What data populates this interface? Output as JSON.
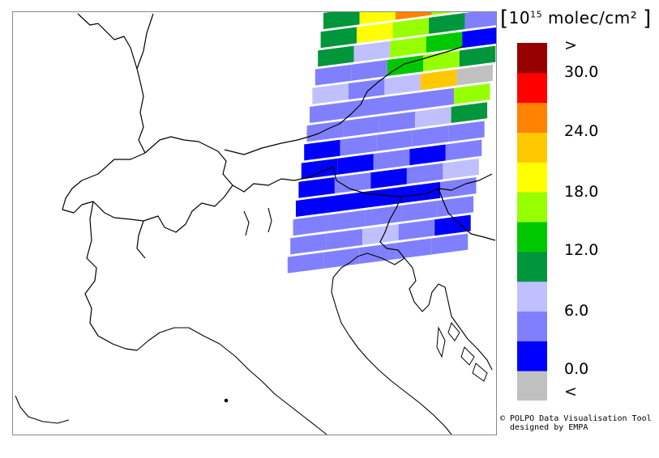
{
  "units_label": {
    "open_bracket": "[",
    "base": "10",
    "exponent": "15",
    "text": " molec/cm²",
    "close_bracket": "]"
  },
  "legend": {
    "bins": [
      {
        "label": "<",
        "color": "#c0c0c0"
      },
      {
        "label": "",
        "color": "#0000ff"
      },
      {
        "label": "",
        "color": "#8080ff"
      },
      {
        "label": "",
        "color": "#c0c0ff"
      },
      {
        "label": "",
        "color": "#00963c"
      },
      {
        "label": "",
        "color": "#00c800"
      },
      {
        "label": "",
        "color": "#96ff00"
      },
      {
        "label": "",
        "color": "#ffff00"
      },
      {
        "label": "",
        "color": "#ffc800"
      },
      {
        "label": "",
        "color": "#ff8200"
      },
      {
        "label": "",
        "color": "#ff0000"
      },
      {
        "label": ">",
        "color": "#960000"
      }
    ],
    "tick_labels": [
      "<",
      "0.0",
      "6.0",
      "12.0",
      "18.0",
      "24.0",
      "30.0",
      ">"
    ]
  },
  "credit": {
    "line1": "© POLPO Data Visualisation Tool",
    "line2": "  designed by EMPA"
  },
  "colors": {
    "grey": "#c0c0c0",
    "blue": "#0000ff",
    "med_blue": "#8080ff",
    "light_blue": "#c0c0ff",
    "dark_green": "#00963c",
    "green": "#00c800",
    "lime": "#96ff00",
    "yellow": "#ffff00",
    "gold": "#ffc800",
    "orange": "#ff8200",
    "red": "#ff0000",
    "dark_red": "#960000"
  },
  "swath_rows": [
    [
      "dark_green",
      "yellow",
      "orange",
      "lime",
      "lime"
    ],
    [
      "dark_green",
      "yellow",
      "lime",
      "dark_green",
      "med_blue"
    ],
    [
      "dark_green",
      "light_blue",
      "lime",
      "green",
      "blue"
    ],
    [
      "med_blue",
      "med_blue",
      "green",
      "lime",
      "dark_green"
    ],
    [
      "light_blue",
      "med_blue",
      "light_blue",
      "gold",
      "grey"
    ],
    [
      "med_blue",
      "med_blue",
      "med_blue",
      "med_blue",
      "lime"
    ],
    [
      "med_blue",
      "med_blue",
      "med_blue",
      "light_blue",
      "dark_green"
    ],
    [
      "blue",
      "med_blue",
      "med_blue",
      "med_blue",
      "med_blue"
    ],
    [
      "blue",
      "blue",
      "med_blue",
      "blue",
      "med_blue"
    ],
    [
      "blue",
      "med_blue",
      "blue",
      "med_blue",
      "light_blue"
    ],
    [
      "blue",
      "blue",
      "blue",
      "blue",
      "med_blue"
    ],
    [
      "med_blue",
      "med_blue",
      "med_blue",
      "med_blue",
      "med_blue"
    ],
    [
      "med_blue",
      "med_blue",
      "light_blue",
      "med_blue",
      "blue"
    ],
    [
      "med_blue",
      "med_blue",
      "med_blue",
      "med_blue",
      "med_blue"
    ]
  ]
}
